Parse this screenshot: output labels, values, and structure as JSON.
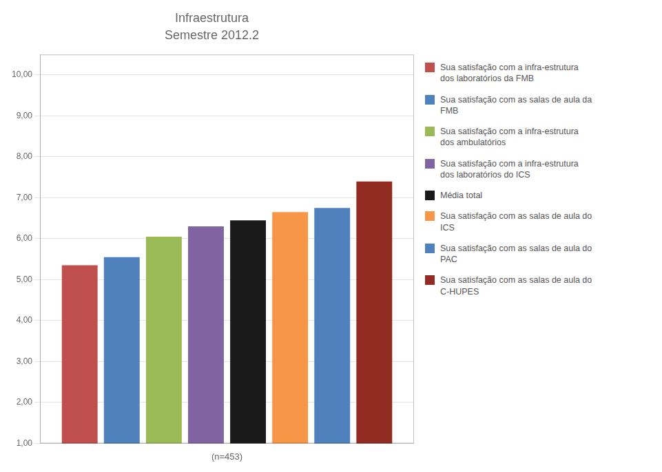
{
  "chart_data": {
    "type": "bar",
    "title": "Infraestrutura",
    "subtitle": "Semestre 2012.2",
    "xlabel": "(n=453)",
    "categories": [
      null
    ],
    "series": [
      {
        "name": "Sua satisfação com a infra-estrutura\ndos laboratórios da FMB",
        "color": "#C0504D",
        "values": [
          5.35
        ]
      },
      {
        "name": "Sua satisfação com as salas de aula da\nFMB",
        "color": "#4F81BD",
        "values": [
          5.55
        ]
      },
      {
        "name": "Sua satisfação com a infra-estrutura\ndos ambulatórios",
        "color": "#9BBB59",
        "values": [
          6.05
        ]
      },
      {
        "name": "Sua satisfação com a infra-estrutura\ndos laboratórios do ICS",
        "color": "#8064A2",
        "values": [
          6.3
        ]
      },
      {
        "name": "Média total",
        "color": "#1A1A1A",
        "values": [
          6.45
        ]
      },
      {
        "name": "Sua satisfação com as salas de aula do\nICS",
        "color": "#F79646",
        "values": [
          6.65
        ]
      },
      {
        "name": "Sua satisfação com as salas de aula do\nPAC",
        "color": "#4F81BD",
        "values": [
          6.75
        ]
      },
      {
        "name": "Sua satisfação com as salas de aula do\nC-HUPES",
        "color": "#922B21",
        "values": [
          7.4
        ]
      }
    ],
    "ylim": [
      1.0,
      10.5
    ],
    "yticks": [
      {
        "value": 1.0,
        "label": "1,00"
      },
      {
        "value": 2.0,
        "label": "2,00"
      },
      {
        "value": 3.0,
        "label": "3,00"
      },
      {
        "value": 4.0,
        "label": "4,00"
      },
      {
        "value": 5.0,
        "label": "5,00"
      },
      {
        "value": 6.0,
        "label": "6,00"
      },
      {
        "value": 7.0,
        "label": "7,00"
      },
      {
        "value": 8.0,
        "label": "8,00"
      },
      {
        "value": 9.0,
        "label": "9,00"
      },
      {
        "value": 10.0,
        "label": "10,00"
      }
    ],
    "grid": true,
    "legend": "right",
    "tick_labels": "y"
  }
}
